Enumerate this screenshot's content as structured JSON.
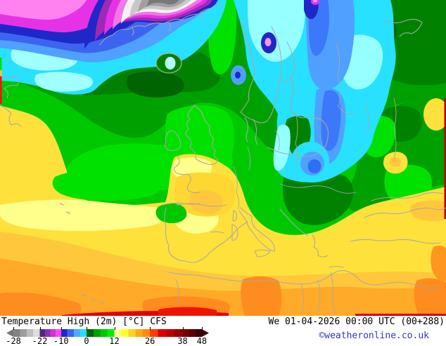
{
  "title": "Temperature High (2m) [°C] CFS",
  "footer": {
    "datetime": "We 01-04-2026 00:00 UTC (00+288)",
    "copyright": "©weatheronline.co.uk",
    "copyright_color": "#3333cc"
  },
  "legend": {
    "unit": "°C",
    "ticks": [
      {
        "label": "-28",
        "pos": 3.5
      },
      {
        "label": "-22",
        "pos": 16.5
      },
      {
        "label": "-10",
        "pos": 27
      },
      {
        "label": "0",
        "pos": 39.6
      },
      {
        "label": "12",
        "pos": 53.3
      },
      {
        "label": "26",
        "pos": 70.9
      },
      {
        "label": "38",
        "pos": 87
      },
      {
        "label": "48",
        "pos": 96.5
      }
    ],
    "segments": [
      {
        "c": "#787878",
        "to": 3.5
      },
      {
        "c": "#848484",
        "to": 6.75
      },
      {
        "c": "#9e9e9e",
        "to": 10
      },
      {
        "c": "#bebebe",
        "to": 13.25
      },
      {
        "c": "#dedede",
        "to": 16.5
      },
      {
        "c": "#502882",
        "to": 19.1
      },
      {
        "c": "#8c32b4",
        "to": 21.7
      },
      {
        "c": "#d232d2",
        "to": 24.3
      },
      {
        "c": "#ff46ff",
        "to": 27
      },
      {
        "c": "#1e28c8",
        "to": 30.1
      },
      {
        "c": "#3c64f0",
        "to": 33.3
      },
      {
        "c": "#50aaff",
        "to": 36.4
      },
      {
        "c": "#28e1ff",
        "to": 39.6
      },
      {
        "c": "#006400",
        "to": 43
      },
      {
        "c": "#00a000",
        "to": 46.4
      },
      {
        "c": "#00c800",
        "to": 49.9
      },
      {
        "c": "#00ee00",
        "to": 53.3
      },
      {
        "c": "#ffff96",
        "to": 56.8
      },
      {
        "c": "#ffff28",
        "to": 60.3
      },
      {
        "c": "#ffd228",
        "to": 63.8
      },
      {
        "c": "#ffaa14",
        "to": 67.4
      },
      {
        "c": "#ff8c00",
        "to": 70.9
      },
      {
        "c": "#ff3c00",
        "to": 74.9
      },
      {
        "c": "#e10000",
        "to": 78.9
      },
      {
        "c": "#be0000",
        "to": 83
      },
      {
        "c": "#960000",
        "to": 87
      },
      {
        "c": "#780000",
        "to": 90.2
      },
      {
        "c": "#5a0000",
        "to": 93.4
      },
      {
        "c": "#3c0000",
        "to": 100
      }
    ]
  },
  "map": {
    "model": "CFS",
    "parameter": "Temperature High (2m)",
    "coastline_color": "#a8a8a8"
  }
}
